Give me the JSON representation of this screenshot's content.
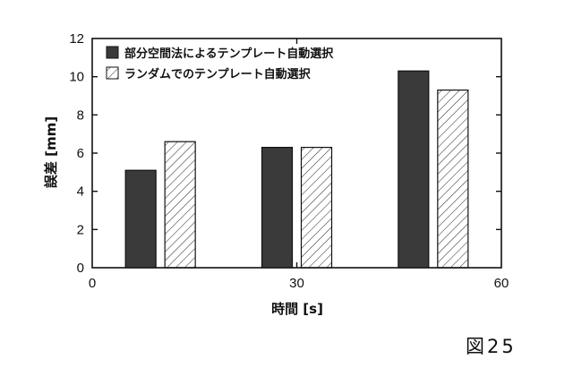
{
  "chart_data": {
    "type": "bar",
    "xlabel": "時間 [s]",
    "ylabel": "誤差 [mm]",
    "xlim": [
      0,
      60
    ],
    "ylim": [
      0,
      12
    ],
    "xticks": [
      "0",
      "30",
      "60"
    ],
    "yticks": [
      "0",
      "2",
      "4",
      "6",
      "8",
      "10",
      "12"
    ],
    "grid": false,
    "legend_position": "top-left",
    "categories": [
      "10",
      "30",
      "50"
    ],
    "series": [
      {
        "name": "部分空間法によるテンプレート自動選択",
        "style": "solid-dark",
        "x": [
          10,
          30,
          50
        ],
        "values": [
          5.1,
          6.3,
          10.3
        ]
      },
      {
        "name": "ランダムでのテンプレート自動選択",
        "style": "hatched",
        "x": [
          10,
          30,
          50
        ],
        "values": [
          6.6,
          6.3,
          9.3
        ]
      }
    ]
  },
  "caption": "図25",
  "colors": {
    "dark_bar": "#3a3a3a",
    "hatch_line": "#222222",
    "axis": "#111111"
  }
}
